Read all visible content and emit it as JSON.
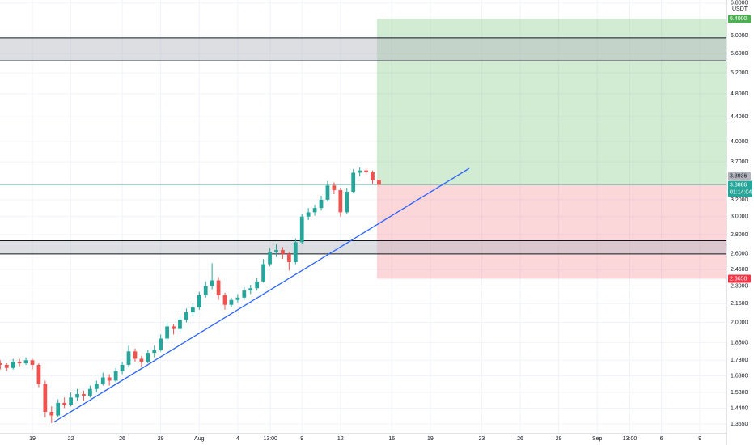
{
  "chart_data": {
    "type": "candlestick",
    "currency": "USDT",
    "x": [
      16.5,
      17,
      17.5,
      18,
      18.5,
      19,
      19.5,
      20,
      20.5,
      21,
      21.5,
      22,
      22.5,
      23,
      23.5,
      24,
      24.5,
      25,
      25.5,
      26,
      26.5,
      27,
      27.5,
      28,
      28.5,
      29,
      29.5,
      30,
      30.5,
      31,
      31.5,
      32,
      32.5,
      33,
      33.5,
      34,
      34.5,
      35,
      35.5,
      36,
      36.5,
      37,
      37.5,
      38,
      38.5,
      39,
      39.5,
      40,
      40.5,
      41,
      41.5,
      42,
      42.5,
      43,
      43.5,
      44,
      44.5,
      45,
      45.5,
      46
    ],
    "open": [
      1.71,
      1.7,
      1.68,
      1.72,
      1.71,
      1.73,
      1.7,
      1.58,
      1.42,
      1.4,
      1.47,
      1.46,
      1.5,
      1.52,
      1.51,
      1.55,
      1.58,
      1.62,
      1.6,
      1.66,
      1.7,
      1.79,
      1.74,
      1.72,
      1.78,
      1.8,
      1.88,
      1.97,
      1.95,
      2.02,
      2.08,
      2.12,
      2.22,
      2.3,
      2.35,
      2.22,
      2.14,
      2.18,
      2.2,
      2.26,
      2.28,
      2.34,
      2.5,
      2.62,
      2.64,
      2.6,
      2.52,
      2.72,
      3.0,
      3.05,
      3.1,
      3.2,
      3.38,
      3.32,
      3.05,
      3.3,
      3.55,
      3.58,
      3.56,
      3.45
    ],
    "high": [
      1.73,
      1.71,
      1.74,
      1.74,
      1.75,
      1.74,
      1.71,
      1.6,
      1.45,
      1.49,
      1.5,
      1.53,
      1.55,
      1.54,
      1.57,
      1.6,
      1.65,
      1.64,
      1.68,
      1.72,
      1.83,
      1.81,
      1.76,
      1.8,
      1.83,
      1.91,
      2.0,
      1.99,
      2.05,
      2.11,
      2.15,
      2.25,
      2.34,
      2.51,
      2.38,
      2.24,
      2.2,
      2.23,
      2.29,
      2.31,
      2.37,
      2.55,
      2.66,
      2.7,
      2.67,
      2.62,
      2.76,
      3.03,
      3.1,
      3.14,
      3.25,
      3.44,
      3.42,
      3.35,
      3.35,
      3.6,
      3.62,
      3.61,
      3.58,
      3.47
    ],
    "low": [
      1.67,
      1.66,
      1.67,
      1.69,
      1.7,
      1.67,
      1.56,
      1.39,
      1.36,
      1.39,
      1.44,
      1.45,
      1.48,
      1.48,
      1.5,
      1.53,
      1.57,
      1.57,
      1.59,
      1.64,
      1.69,
      1.72,
      1.69,
      1.71,
      1.75,
      1.79,
      1.86,
      1.91,
      1.93,
      2.0,
      2.05,
      2.1,
      2.2,
      2.27,
      2.18,
      2.1,
      2.12,
      2.16,
      2.18,
      2.23,
      2.26,
      2.33,
      2.48,
      2.57,
      2.55,
      2.44,
      2.5,
      2.7,
      2.96,
      3.01,
      3.07,
      3.18,
      3.27,
      3.0,
      3.03,
      3.28,
      3.5,
      3.52,
      3.4,
      3.36
    ],
    "close": [
      1.7,
      1.68,
      1.72,
      1.71,
      1.73,
      1.7,
      1.58,
      1.42,
      1.4,
      1.47,
      1.46,
      1.5,
      1.52,
      1.51,
      1.55,
      1.58,
      1.62,
      1.6,
      1.66,
      1.7,
      1.79,
      1.74,
      1.72,
      1.78,
      1.8,
      1.88,
      1.97,
      1.95,
      2.02,
      2.08,
      2.12,
      2.22,
      2.3,
      2.35,
      2.22,
      2.14,
      2.18,
      2.2,
      2.26,
      2.28,
      2.34,
      2.5,
      2.62,
      2.64,
      2.6,
      2.52,
      2.72,
      3.0,
      3.05,
      3.1,
      3.2,
      3.38,
      3.32,
      3.05,
      3.3,
      3.55,
      3.58,
      3.56,
      3.45,
      3.39
    ],
    "up_color": "#26a69a",
    "down_color": "#ef5350",
    "log_scale": true,
    "grid": true,
    "xlim": [
      16.48,
      73.07
    ],
    "xticks": [
      19,
      22,
      26,
      29,
      {
        "value": 32,
        "label": "Aug"
      },
      {
        "value": 35,
        "label": "4"
      },
      {
        "value": 37.54,
        "label": "13:00"
      },
      {
        "value": 40,
        "label": "9"
      },
      {
        "value": 43,
        "label": "12"
      },
      {
        "value": 47,
        "label": "16"
      },
      {
        "value": 50,
        "label": "19"
      },
      {
        "value": 54,
        "label": "23"
      },
      {
        "value": 57,
        "label": "26"
      },
      {
        "value": 60,
        "label": "29"
      },
      {
        "value": 63,
        "label": "Sep"
      },
      {
        "value": 65.54,
        "label": "13:00"
      },
      {
        "value": 68,
        "label": "6"
      },
      {
        "value": 71,
        "label": "9"
      }
    ],
    "ylim": [
      1.31,
      6.88
    ],
    "yticks": [
      {
        "value": 1.355,
        "label": "1.3550"
      },
      {
        "value": 1.44,
        "label": "1.4400"
      },
      {
        "value": 1.53,
        "label": "1.5300"
      },
      {
        "value": 1.63,
        "label": "1.6300"
      },
      {
        "value": 1.73,
        "label": "1.7300"
      },
      {
        "value": 1.85,
        "label": "1.8500"
      },
      {
        "value": 2,
        "label": "2.0000"
      },
      {
        "value": 2.15,
        "label": "2.1500"
      },
      {
        "value": 2.3,
        "label": "2.3000"
      },
      {
        "value": 2.45,
        "label": "2.4500"
      },
      {
        "value": 2.6,
        "label": "2.6000"
      },
      {
        "value": 2.8,
        "label": "2.8000"
      },
      {
        "value": 3,
        "label": "3.0000"
      },
      {
        "value": 3.2,
        "label": "3.2000"
      },
      {
        "value": 3.7,
        "label": "3.7000"
      },
      {
        "value": 4,
        "label": "4.0000"
      },
      {
        "value": 4.4,
        "label": "4.4000"
      },
      {
        "value": 4.8,
        "label": "4.8000"
      },
      {
        "value": 5.2,
        "label": "5.2000"
      },
      {
        "value": 5.6,
        "label": "5.6000"
      },
      {
        "value": 6,
        "label": "6.0000"
      },
      {
        "value": 6.8,
        "label": "6.8000"
      }
    ],
    "trendline": {
      "x": [
        20.7,
        53.03
      ],
      "y": [
        1.366,
        3.61
      ],
      "color": "#2962ff"
    },
    "zones": [
      {
        "ylim": [
          2.6,
          2.735
        ]
      },
      {
        "ylim": [
          5.45,
          5.95
        ]
      }
    ],
    "position": {
      "x_start": 45.84,
      "entry": {
        "value": 3.3886
      },
      "target": {
        "value": 6.4,
        "label": "6.4000",
        "color": "#4caf50"
      },
      "stop": {
        "value": 2.365,
        "label": "2.3650",
        "color": "#f23645"
      }
    },
    "last_price": {
      "value": 3.3886,
      "label": "3.3886",
      "color": "#26a69a"
    },
    "countdown": "01:14:04",
    "marker_price": {
      "value": 3.3936,
      "label": "3.3936",
      "color": "#b2b5be"
    }
  }
}
